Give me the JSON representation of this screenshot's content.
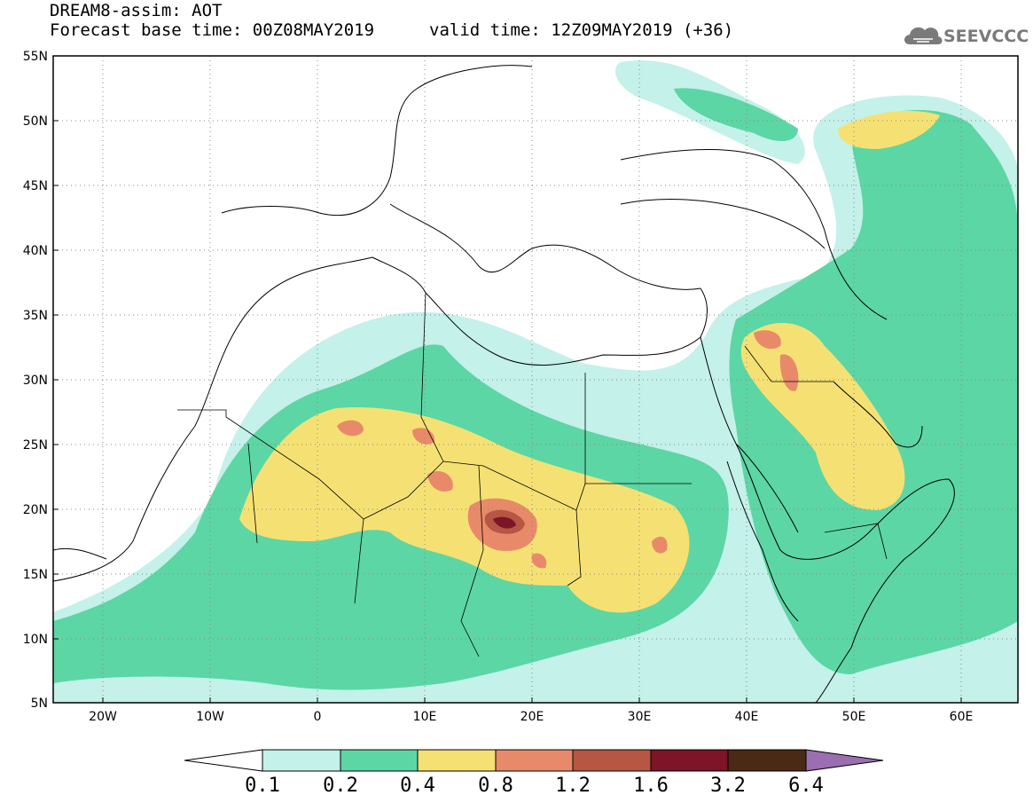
{
  "title": {
    "line1": "DREAM8-assim: AOT",
    "line2": "Forecast base time: 00Z08MAY2019",
    "valid": "valid time: 12Z09MAY2019 (+36)"
  },
  "logo": {
    "text": "SEEVCCC",
    "icon": "cloud-icon"
  },
  "map_data": {
    "type": "filled-contour-map",
    "variable": "AOT",
    "lon_range": [
      -25,
      65
    ],
    "lat_range": [
      5,
      55
    ],
    "lat_ticks": [
      "55N",
      "50N",
      "45N",
      "40N",
      "35N",
      "30N",
      "25N",
      "20N",
      "15N",
      "10N",
      "5N"
    ],
    "lon_ticks": [
      "20W",
      "10W",
      "0",
      "10E",
      "20E",
      "30E",
      "40E",
      "50E",
      "60E"
    ],
    "grid": "dotted"
  },
  "colorbar": {
    "labels": [
      "0.1",
      "0.2",
      "0.4",
      "0.8",
      "1.2",
      "1.6",
      "3.2",
      "6.4"
    ],
    "colors": [
      "#c4f1e9",
      "#5cd6a4",
      "#f5e173",
      "#e88a6a",
      "#b65643",
      "#7d1428",
      "#4a2a14",
      "#9a6eb0"
    ]
  }
}
